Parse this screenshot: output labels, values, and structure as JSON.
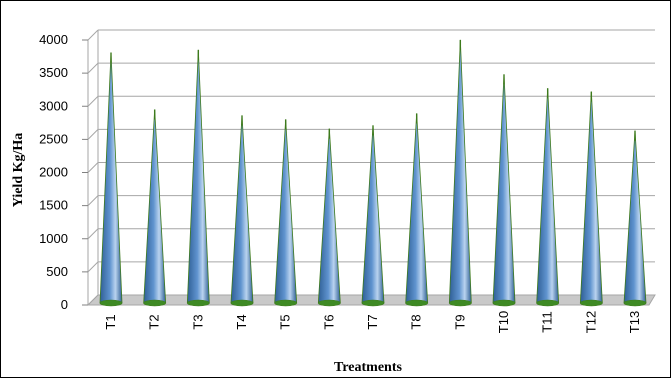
{
  "chart_data": {
    "type": "bar",
    "bar_shape": "cone",
    "projection": "3d",
    "title": "",
    "xlabel": "Treatments",
    "ylabel": "Yield Kg/Ha",
    "categories": [
      "T1",
      "T2",
      "T3",
      "T4",
      "T5",
      "T6",
      "T7",
      "T8",
      "T9",
      "T10",
      "T11",
      "T12",
      "T13"
    ],
    "values": [
      3570,
      2710,
      3610,
      2620,
      2560,
      2420,
      2470,
      2650,
      3760,
      3240,
      3030,
      2980,
      2390
    ],
    "ylim": [
      0,
      4000
    ],
    "yticks": [
      0,
      500,
      1000,
      1500,
      2000,
      2500,
      3000,
      3500,
      4000
    ],
    "grid": true,
    "legend": "none",
    "colors": {
      "cone_dark": "#2f5f95",
      "cone_mid": "#5f93cf",
      "cone_light": "#b9d3ef",
      "cone_tip": "#3d7a1c",
      "base": "#3e8a24",
      "gridline": "#a6a6a6",
      "floor": "#c9c9c9"
    }
  }
}
